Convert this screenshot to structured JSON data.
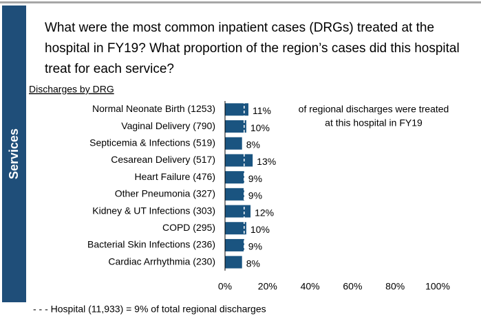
{
  "page": {
    "section": "Services",
    "title_lines": [
      "What were the most common inpatient cases (DRGs) treated at the",
      "hospital in FY19? What proportion of the region’s cases did this hospital",
      "treat for each service?"
    ]
  },
  "chart_data": {
    "type": "bar",
    "orientation": "horizontal",
    "title": "Discharges by DRG",
    "categories": [
      "Normal Neonate Birth (1253)",
      "Vaginal Delivery (790)",
      "Septicemia & Infections (519)",
      "Cesarean Delivery (517)",
      "Heart Failure (476)",
      "Other Pneumonia (327)",
      "Kidney & UT Infections (303)",
      "COPD (295)",
      "Bacterial Skin Infections (236)",
      "Cardiac Arrhythmia  (230)"
    ],
    "values": [
      11,
      10,
      8,
      13,
      9,
      9,
      12,
      10,
      9,
      8
    ],
    "value_labels": [
      "11%",
      "10%",
      "8%",
      "13%",
      "9%",
      "9%",
      "12%",
      "10%",
      "9%",
      "8%"
    ],
    "color": "#1a5480",
    "xlim": [
      0,
      100
    ],
    "xticks": [
      {
        "value": 0,
        "label": "0%"
      },
      {
        "value": 20,
        "label": "20%"
      },
      {
        "value": 40,
        "label": "40%"
      },
      {
        "value": 60,
        "label": "60%"
      },
      {
        "value": 80,
        "label": "80%"
      },
      {
        "value": 100,
        "label": "100%"
      }
    ],
    "annotation_lines": [
      "of regional discharges were treated",
      "at this hospital in FY19"
    ],
    "reference_value": 9,
    "footnote": "- - - Hospital  (11,933) = 9%  of total regional discharges"
  }
}
